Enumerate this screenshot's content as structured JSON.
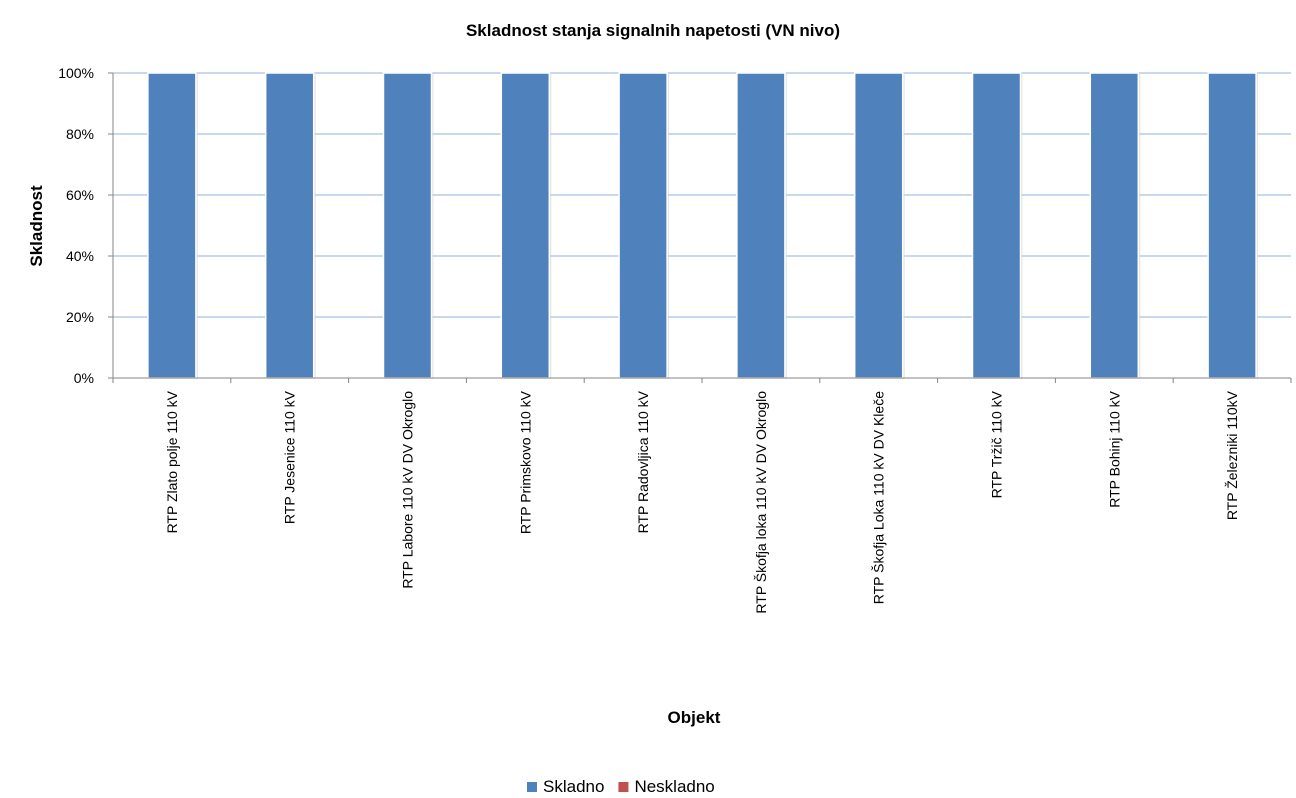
{
  "chart_data": {
    "type": "bar",
    "title": "Skladnost stanja signalnih napetosti (VN nivo)",
    "xlabel": "Objekt",
    "ylabel": "Skladnost",
    "ylim": [
      0,
      100
    ],
    "yticks": [
      "0%",
      "20%",
      "40%",
      "60%",
      "80%",
      "100%"
    ],
    "stacked": true,
    "grid": true,
    "legend_position": "bottom",
    "categories": [
      "RTP Zlato polje 110 kV",
      "RTP Jesenice 110 kV",
      "RTP Labore 110 kV DV Okroglo",
      "RTP Primskovo 110 kV",
      "RTP Radovljica 110 kV",
      "RTP Škofja loka 110 kV DV Okroglo",
      "RTP Škofja Loka 110 kV DV Kleče",
      "RTP Tržič 110 kV",
      "RTP Bohinj 110 kV",
      "RTP Železniki 110kV"
    ],
    "series": [
      {
        "name": "Skladno",
        "color": "#4F81BD",
        "values": [
          100,
          100,
          100,
          100,
          100,
          100,
          100,
          100,
          100,
          100
        ]
      },
      {
        "name": "Neskladno",
        "color": "#C0504D",
        "values": [
          0,
          0,
          0,
          0,
          0,
          0,
          0,
          0,
          0,
          0
        ]
      }
    ]
  }
}
